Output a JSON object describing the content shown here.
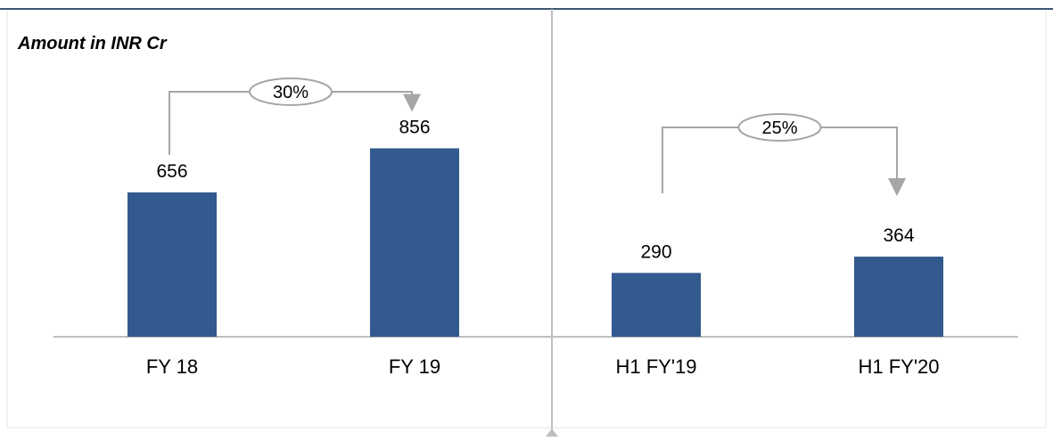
{
  "unit_label": "Amount in INR Cr",
  "chart_data": [
    {
      "type": "bar",
      "categories": [
        "FY 18",
        "FY 19"
      ],
      "values": [
        656,
        856
      ],
      "data_labels": [
        "656",
        "856"
      ],
      "growth_label": "30%",
      "ylim": [
        0,
        900
      ]
    },
    {
      "type": "bar",
      "categories": [
        "H1 FY'19",
        "H1 FY'20"
      ],
      "values": [
        290,
        364
      ],
      "data_labels": [
        "290",
        "364"
      ],
      "growth_label": "25%",
      "ylim": [
        0,
        900
      ]
    }
  ],
  "colors": {
    "bar": "#335A8E",
    "top_rule": "#3D5674",
    "axis": "#BFBFBF",
    "arrow": "#A6A6A6",
    "divider": "#BFBFBF",
    "frame": "#E6E6E6"
  }
}
